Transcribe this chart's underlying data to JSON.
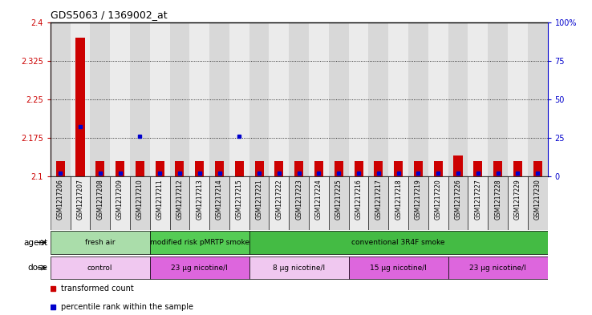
{
  "title": "GDS5063 / 1369002_at",
  "samples": [
    "GSM1217206",
    "GSM1217207",
    "GSM1217208",
    "GSM1217209",
    "GSM1217210",
    "GSM1217211",
    "GSM1217212",
    "GSM1217213",
    "GSM1217214",
    "GSM1217215",
    "GSM1217221",
    "GSM1217222",
    "GSM1217223",
    "GSM1217224",
    "GSM1217225",
    "GSM1217216",
    "GSM1217217",
    "GSM1217218",
    "GSM1217219",
    "GSM1217220",
    "GSM1217226",
    "GSM1217227",
    "GSM1217228",
    "GSM1217229",
    "GSM1217230"
  ],
  "transformed_counts": [
    2.13,
    2.37,
    2.13,
    2.13,
    2.13,
    2.13,
    2.13,
    2.13,
    2.13,
    2.13,
    2.13,
    2.13,
    2.13,
    2.13,
    2.13,
    2.13,
    2.13,
    2.13,
    2.13,
    2.13,
    2.14,
    2.13,
    2.13,
    2.13,
    2.13
  ],
  "percentile_ranks": [
    2,
    32,
    2,
    2,
    26,
    2,
    2,
    2,
    2,
    26,
    2,
    2,
    2,
    2,
    2,
    2,
    2,
    2,
    2,
    2,
    2,
    2,
    2,
    2,
    2
  ],
  "ylim_left": [
    2.1,
    2.4
  ],
  "ylim_right": [
    0,
    100
  ],
  "yticks_left": [
    2.1,
    2.175,
    2.25,
    2.325,
    2.4
  ],
  "yticks_right": [
    0,
    25,
    50,
    75,
    100
  ],
  "ytick_labels_right": [
    "0",
    "25",
    "50",
    "75",
    "100%"
  ],
  "bar_color": "#cc0000",
  "dot_color": "#0000cc",
  "agent_groups": [
    {
      "label": "fresh air",
      "start": 0,
      "end": 5,
      "color": "#aaddaa"
    },
    {
      "label": "modified risk pMRTP smoke",
      "start": 5,
      "end": 10,
      "color": "#55cc55"
    },
    {
      "label": "conventional 3R4F smoke",
      "start": 10,
      "end": 25,
      "color": "#44bb44"
    }
  ],
  "dose_groups": [
    {
      "label": "control",
      "start": 0,
      "end": 5,
      "color": "#f0c8f0"
    },
    {
      "label": "23 μg nicotine/l",
      "start": 5,
      "end": 10,
      "color": "#dd66dd"
    },
    {
      "label": "8 μg nicotine/l",
      "start": 10,
      "end": 15,
      "color": "#f0c8f0"
    },
    {
      "label": "15 μg nicotine/l",
      "start": 15,
      "end": 20,
      "color": "#dd66dd"
    },
    {
      "label": "23 μg nicotine/l",
      "start": 20,
      "end": 25,
      "color": "#dd66dd"
    }
  ],
  "legend_red": "transformed count",
  "legend_blue": "percentile rank within the sample",
  "agent_label": "agent",
  "dose_label": "dose"
}
